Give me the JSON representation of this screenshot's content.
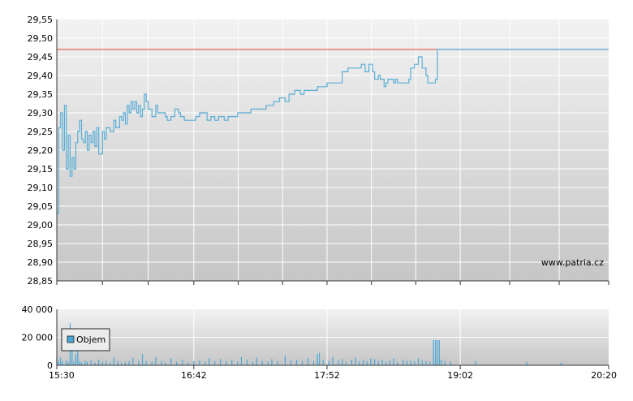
{
  "chart_data": [
    {
      "type": "line",
      "x_ticks": [
        "15:30",
        "16:42",
        "17:52",
        "19:02",
        "20:20"
      ],
      "xlim": [
        "15:30",
        "20:20"
      ],
      "y_ticks": [
        "29,55",
        "29,50",
        "29,45",
        "29,40",
        "29,35",
        "29,30",
        "29,25",
        "29,20",
        "29,15",
        "29,10",
        "29,05",
        "29,00",
        "28,95",
        "28,90",
        "28,85"
      ],
      "ylim": [
        28.85,
        29.55
      ],
      "grid": true,
      "watermark": "www.patria.cz",
      "reference_value": 29.47,
      "colors": {
        "price": "#5aaed6",
        "reference": "#e05a4a",
        "reference_after": "#6a82a8",
        "grid": "#ffffff"
      },
      "series": [
        {
          "values": [
            [
              "15:30",
              29.03
            ],
            [
              "15:31",
              29.26
            ],
            [
              "15:32",
              29.3
            ],
            [
              "15:33",
              29.2
            ],
            [
              "15:34",
              29.32
            ],
            [
              "15:35",
              29.15
            ],
            [
              "15:36",
              29.24
            ],
            [
              "15:37",
              29.13
            ],
            [
              "15:38",
              29.18
            ],
            [
              "15:39",
              29.15
            ],
            [
              "15:40",
              29.22
            ],
            [
              "15:41",
              29.25
            ],
            [
              "15:42",
              29.28
            ],
            [
              "15:43",
              29.23
            ],
            [
              "15:44",
              29.22
            ],
            [
              "15:45",
              29.25
            ],
            [
              "15:46",
              29.2
            ],
            [
              "15:47",
              29.24
            ],
            [
              "15:48",
              29.22
            ],
            [
              "15:49",
              29.25
            ],
            [
              "15:50",
              29.21
            ],
            [
              "15:51",
              29.26
            ],
            [
              "15:52",
              29.19
            ],
            [
              "15:54",
              29.25
            ],
            [
              "15:55",
              29.23
            ],
            [
              "15:56",
              29.26
            ],
            [
              "15:58",
              29.25
            ],
            [
              "16:00",
              29.28
            ],
            [
              "16:01",
              29.26
            ],
            [
              "16:03",
              29.29
            ],
            [
              "16:04",
              29.28
            ],
            [
              "16:05",
              29.3
            ],
            [
              "16:06",
              29.27
            ],
            [
              "16:07",
              29.32
            ],
            [
              "16:08",
              29.3
            ],
            [
              "16:09",
              29.33
            ],
            [
              "16:10",
              29.31
            ],
            [
              "16:11",
              29.33
            ],
            [
              "16:12",
              29.3
            ],
            [
              "16:13",
              29.32
            ],
            [
              "16:14",
              29.29
            ],
            [
              "16:15",
              29.31
            ],
            [
              "16:16",
              29.35
            ],
            [
              "16:17",
              29.33
            ],
            [
              "16:18",
              29.31
            ],
            [
              "16:20",
              29.29
            ],
            [
              "16:22",
              29.32
            ],
            [
              "16:23",
              29.3
            ],
            [
              "16:25",
              29.3
            ],
            [
              "16:27",
              29.29
            ],
            [
              "16:28",
              29.28
            ],
            [
              "16:30",
              29.29
            ],
            [
              "16:32",
              29.31
            ],
            [
              "16:34",
              29.3
            ],
            [
              "16:35",
              29.29
            ],
            [
              "16:37",
              29.28
            ],
            [
              "16:40",
              29.28
            ],
            [
              "16:42",
              29.28
            ],
            [
              "16:43",
              29.29
            ],
            [
              "16:45",
              29.3
            ],
            [
              "16:47",
              29.3
            ],
            [
              "16:49",
              29.28
            ],
            [
              "16:51",
              29.29
            ],
            [
              "16:53",
              29.28
            ],
            [
              "16:55",
              29.29
            ],
            [
              "16:58",
              29.28
            ],
            [
              "17:00",
              29.29
            ],
            [
              "17:03",
              29.29
            ],
            [
              "17:05",
              29.3
            ],
            [
              "17:10",
              29.3
            ],
            [
              "17:12",
              29.31
            ],
            [
              "17:18",
              29.31
            ],
            [
              "17:20",
              29.32
            ],
            [
              "17:23",
              29.32
            ],
            [
              "17:24",
              29.33
            ],
            [
              "17:27",
              29.34
            ],
            [
              "17:30",
              29.33
            ],
            [
              "17:32",
              29.35
            ],
            [
              "17:35",
              29.36
            ],
            [
              "17:38",
              29.35
            ],
            [
              "17:40",
              29.36
            ],
            [
              "17:45",
              29.36
            ],
            [
              "17:47",
              29.37
            ],
            [
              "17:50",
              29.37
            ],
            [
              "17:52",
              29.38
            ],
            [
              "17:58",
              29.38
            ],
            [
              "18:00",
              29.41
            ],
            [
              "18:03",
              29.42
            ],
            [
              "18:08",
              29.42
            ],
            [
              "18:10",
              29.43
            ],
            [
              "18:12",
              29.41
            ],
            [
              "18:14",
              29.43
            ],
            [
              "18:16",
              29.41
            ],
            [
              "18:17",
              29.39
            ],
            [
              "18:19",
              29.4
            ],
            [
              "18:20",
              29.39
            ],
            [
              "18:22",
              29.37
            ],
            [
              "18:23",
              29.38
            ],
            [
              "18:24",
              29.39
            ],
            [
              "18:27",
              29.38
            ],
            [
              "18:28",
              29.39
            ],
            [
              "18:29",
              29.38
            ],
            [
              "18:35",
              29.39
            ],
            [
              "18:36",
              29.42
            ],
            [
              "18:38",
              29.43
            ],
            [
              "18:40",
              29.45
            ],
            [
              "18:42",
              29.42
            ],
            [
              "18:44",
              29.4
            ],
            [
              "18:45",
              29.38
            ],
            [
              "18:49",
              29.39
            ],
            [
              "18:50",
              29.47
            ],
            [
              "20:20",
              29.47
            ]
          ]
        }
      ]
    },
    {
      "type": "bar",
      "x_ticks": [
        "15:30",
        "16:42",
        "17:52",
        "19:02",
        "20:20"
      ],
      "xlim": [
        "15:30",
        "20:20"
      ],
      "y_ticks": [
        "40 000",
        "20 000",
        "0"
      ],
      "ylim": [
        0,
        40000
      ],
      "grid": true,
      "legend": {
        "label": "Objem",
        "placement": "top-left"
      },
      "colors": {
        "bar": "#4aa8d8",
        "legend_swatch": "#4aa8d8"
      },
      "values": [
        [
          "15:30",
          6000
        ],
        [
          "15:31",
          3000
        ],
        [
          "15:32",
          5500
        ],
        [
          "15:33",
          2500
        ],
        [
          "15:35",
          3500
        ],
        [
          "15:36",
          2000
        ],
        [
          "15:37",
          30000
        ],
        [
          "15:38",
          14000
        ],
        [
          "15:39",
          2500
        ],
        [
          "15:40",
          8000
        ],
        [
          "15:41",
          11000
        ],
        [
          "15:42",
          3000
        ],
        [
          "15:43",
          2000
        ],
        [
          "15:45",
          3000
        ],
        [
          "15:46",
          2500
        ],
        [
          "15:48",
          3500
        ],
        [
          "15:50",
          2000
        ],
        [
          "15:52",
          4000
        ],
        [
          "15:54",
          2500
        ],
        [
          "15:56",
          3000
        ],
        [
          "15:58",
          2000
        ],
        [
          "16:00",
          5500
        ],
        [
          "16:02",
          3000
        ],
        [
          "16:04",
          2000
        ],
        [
          "16:06",
          2500
        ],
        [
          "16:08",
          3000
        ],
        [
          "16:10",
          5500
        ],
        [
          "16:13",
          3000
        ],
        [
          "16:15",
          8000
        ],
        [
          "16:17",
          3000
        ],
        [
          "16:20",
          2500
        ],
        [
          "16:22",
          6000
        ],
        [
          "16:25",
          3000
        ],
        [
          "16:27",
          2000
        ],
        [
          "16:30",
          5000
        ],
        [
          "16:33",
          2500
        ],
        [
          "16:36",
          4000
        ],
        [
          "16:39",
          2000
        ],
        [
          "16:42",
          3000
        ],
        [
          "16:45",
          3500
        ],
        [
          "16:48",
          2500
        ],
        [
          "16:50",
          5000
        ],
        [
          "16:53",
          3000
        ],
        [
          "16:56",
          4500
        ],
        [
          "16:59",
          3000
        ],
        [
          "17:02",
          4000
        ],
        [
          "17:05",
          2500
        ],
        [
          "17:07",
          6000
        ],
        [
          "17:10",
          4000
        ],
        [
          "17:13",
          2500
        ],
        [
          "17:15",
          5500
        ],
        [
          "17:18",
          3000
        ],
        [
          "17:21",
          2500
        ],
        [
          "17:23",
          4500
        ],
        [
          "17:26",
          3000
        ],
        [
          "17:30",
          7000
        ],
        [
          "17:33",
          3500
        ],
        [
          "17:36",
          4000
        ],
        [
          "17:39",
          3000
        ],
        [
          "17:42",
          5000
        ],
        [
          "17:45",
          3000
        ],
        [
          "17:47",
          8000
        ],
        [
          "17:48",
          9000
        ],
        [
          "17:50",
          4000
        ],
        [
          "17:53",
          3000
        ],
        [
          "17:55",
          6000
        ],
        [
          "17:58",
          3500
        ],
        [
          "18:00",
          4500
        ],
        [
          "18:02",
          2500
        ],
        [
          "18:05",
          4000
        ],
        [
          "18:07",
          5500
        ],
        [
          "18:09",
          3000
        ],
        [
          "18:11",
          4000
        ],
        [
          "18:13",
          3000
        ],
        [
          "18:15",
          5000
        ],
        [
          "18:17",
          4500
        ],
        [
          "18:19",
          3000
        ],
        [
          "18:21",
          4000
        ],
        [
          "18:23",
          2500
        ],
        [
          "18:25",
          3500
        ],
        [
          "18:27",
          5000
        ],
        [
          "18:29",
          2500
        ],
        [
          "18:32",
          4000
        ],
        [
          "18:34",
          3000
        ],
        [
          "18:36",
          3500
        ],
        [
          "18:38",
          3000
        ],
        [
          "18:40",
          5000
        ],
        [
          "18:42",
          3500
        ],
        [
          "18:44",
          3000
        ],
        [
          "18:46",
          2500
        ],
        [
          "18:48",
          18000
        ],
        [
          "18:49",
          18000
        ],
        [
          "18:50",
          18000
        ],
        [
          "18:51",
          18000
        ],
        [
          "18:52",
          4000
        ],
        [
          "18:54",
          3000
        ],
        [
          "18:57",
          2500
        ],
        [
          "19:10",
          3000
        ],
        [
          "19:37",
          2500
        ],
        [
          "19:55",
          2000
        ]
      ]
    }
  ]
}
